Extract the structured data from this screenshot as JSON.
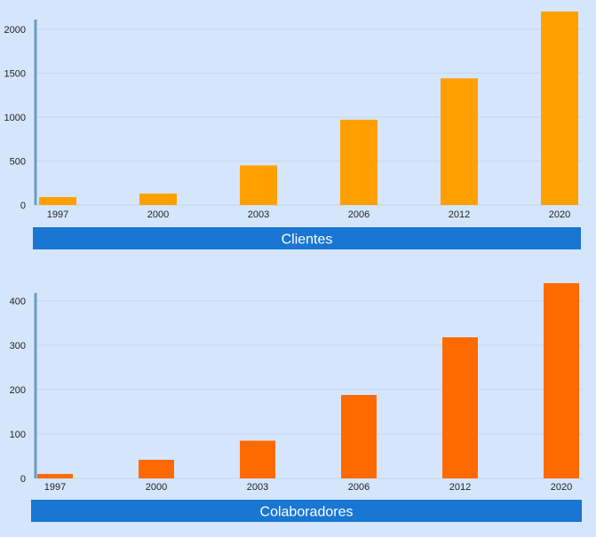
{
  "colors": {
    "background": "#d5e6fc",
    "banner": "#1976d2",
    "banner_text": "#ffffff",
    "axis_line": "#6a9ec2",
    "grid": "#c4d7ee",
    "tick_text": "#222222"
  },
  "chart_data": [
    {
      "type": "bar",
      "title": "Clientes",
      "categories": [
        "1997",
        "2000",
        "2003",
        "2006",
        "2012",
        "2020"
      ],
      "values": [
        90,
        130,
        450,
        970,
        1440,
        2200
      ],
      "yticks": [
        0,
        500,
        1000,
        1500,
        2000
      ],
      "ylim": [
        0,
        2200
      ],
      "grid": true,
      "bar_color": "#ff9f00"
    },
    {
      "type": "bar",
      "title": "Colaboradores",
      "categories": [
        "1997",
        "2000",
        "2003",
        "2006",
        "2012",
        "2020"
      ],
      "values": [
        10,
        42,
        85,
        188,
        318,
        440
      ],
      "yticks": [
        0,
        100,
        200,
        300,
        400
      ],
      "ylim": [
        0,
        440
      ],
      "grid": true,
      "bar_color": "#ff6a00"
    }
  ]
}
